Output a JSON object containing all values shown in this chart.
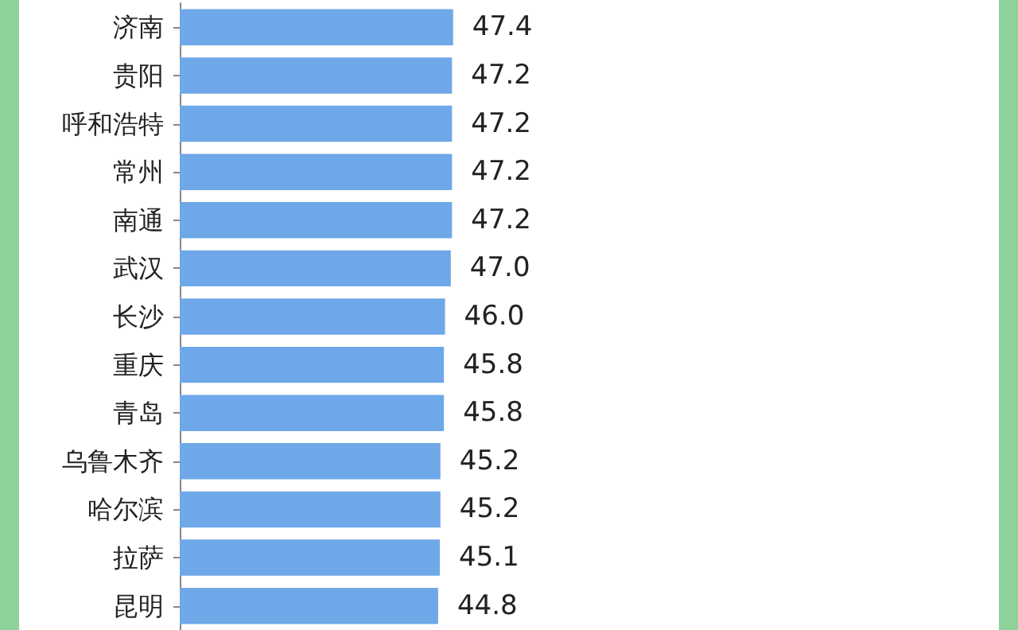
{
  "chart_data": {
    "type": "bar",
    "orientation": "horizontal",
    "categories": [
      "济南",
      "贵阳",
      "呼和浩特",
      "常州",
      "南通",
      "武汉",
      "长沙",
      "重庆",
      "青岛",
      "乌鲁木齐",
      "哈尔滨",
      "拉萨",
      "昆明"
    ],
    "values": [
      47.4,
      47.2,
      47.2,
      47.2,
      47.2,
      47.0,
      46.0,
      45.8,
      45.8,
      45.2,
      45.2,
      45.1,
      44.8
    ],
    "value_labels": [
      "47.4",
      "47.2",
      "47.2",
      "47.2",
      "47.2",
      "47.0",
      "46.0",
      "45.8",
      "45.8",
      "45.2",
      "45.2",
      "45.1",
      "44.8"
    ],
    "color": "#6fa8e8"
  }
}
